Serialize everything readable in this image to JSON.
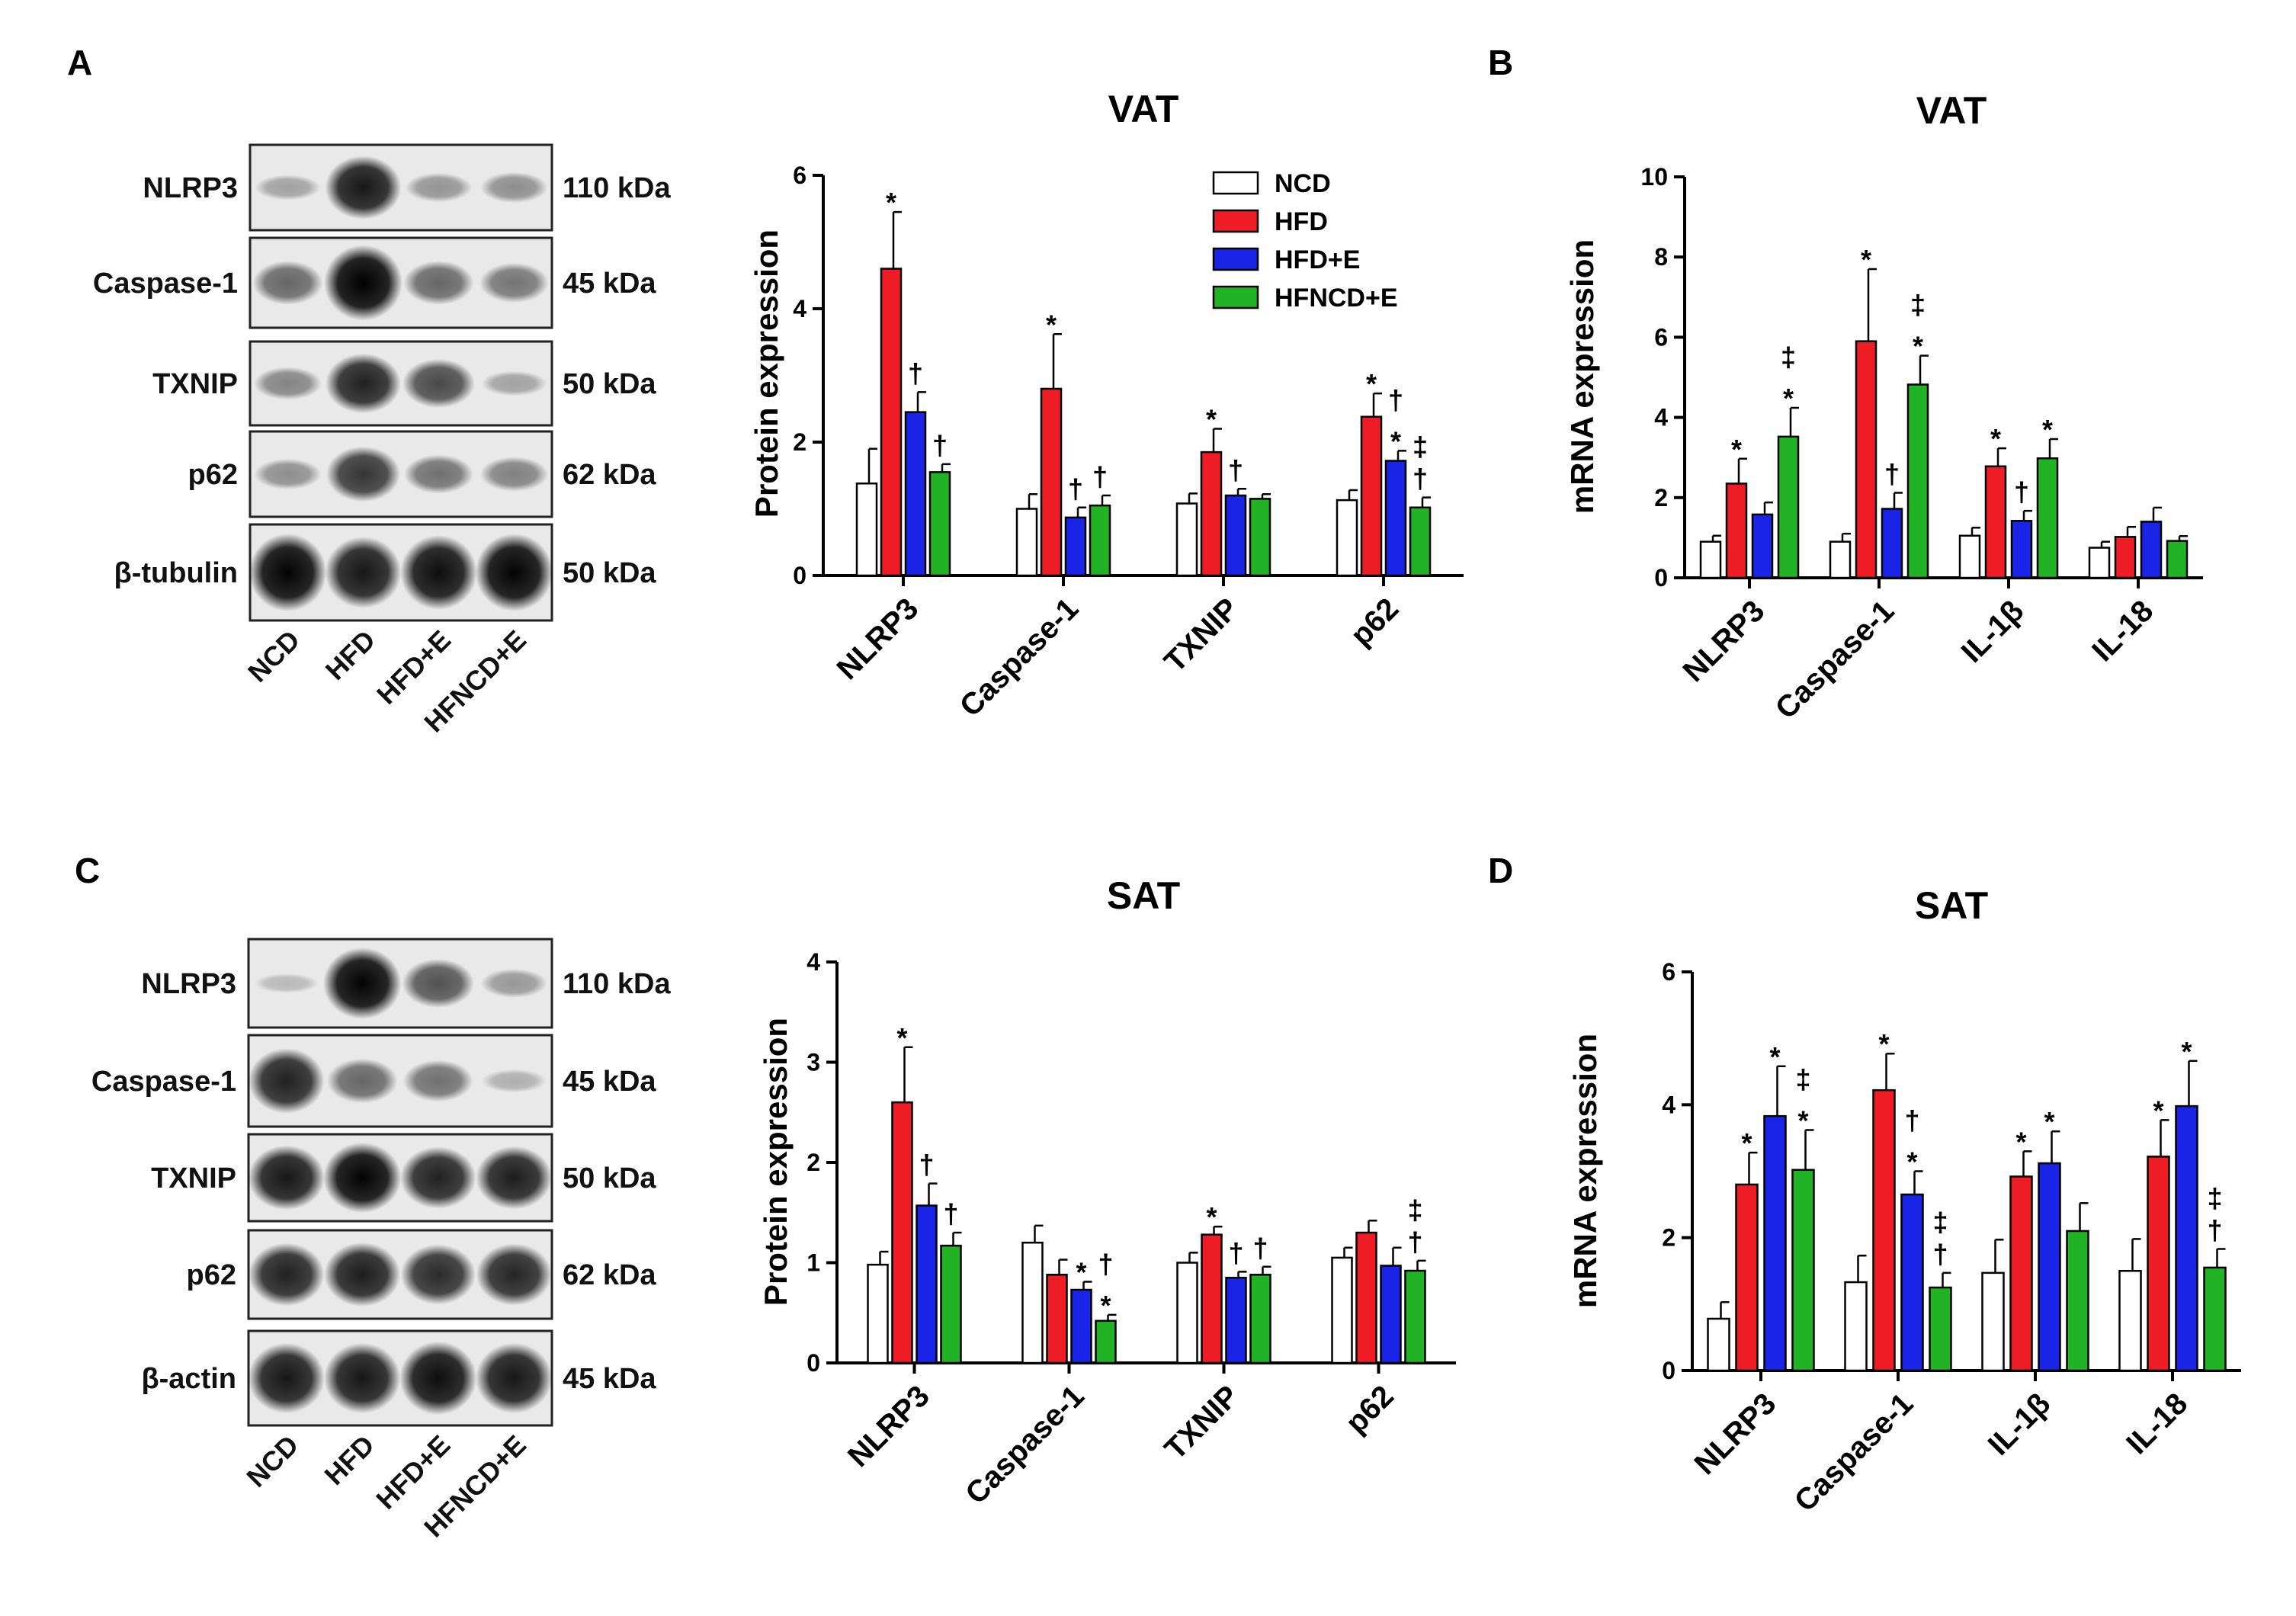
{
  "panel_labels": {
    "A": "A",
    "B": "B",
    "C": "C",
    "D": "D"
  },
  "colors": {
    "NCD": "#ffffff",
    "HFD": "#ee1c25",
    "HFD+E": "#1a24e6",
    "HFNCD+E": "#22b226"
  },
  "blots": {
    "A": {
      "bands": [
        {
          "name": "NLRP3",
          "kda": "110 kDa",
          "intensity": [
            0.15,
            0.85,
            0.22,
            0.25
          ]
        },
        {
          "name": "Caspase-1",
          "kda": "45 kDa",
          "intensity": [
            0.45,
            1.0,
            0.45,
            0.38
          ]
        },
        {
          "name": "TXNIP",
          "kda": "50 kDa",
          "intensity": [
            0.3,
            0.8,
            0.6,
            0.15
          ]
        },
        {
          "name": "p62",
          "kda": "62 kDa",
          "intensity": [
            0.25,
            0.7,
            0.4,
            0.32
          ]
        },
        {
          "name": "β-tubulin",
          "kda": "50 kDa",
          "intensity": [
            0.95,
            0.85,
            0.9,
            0.95
          ]
        }
      ],
      "lanes": [
        "NCD",
        "HFD",
        "HFD+E",
        "HFNCD+E"
      ]
    },
    "C": {
      "bands": [
        {
          "name": "NLRP3",
          "kda": "110 kDa",
          "intensity": [
            0.03,
            0.95,
            0.55,
            0.2
          ]
        },
        {
          "name": "Caspase-1",
          "kda": "45 kDa",
          "intensity": [
            0.8,
            0.45,
            0.4,
            0.08
          ]
        },
        {
          "name": "TXNIP",
          "kda": "50 kDa",
          "intensity": [
            0.85,
            0.95,
            0.8,
            0.82
          ]
        },
        {
          "name": "p62",
          "kda": "62 kDa",
          "intensity": [
            0.8,
            0.82,
            0.75,
            0.78
          ]
        },
        {
          "name": "β-actin",
          "kda": "45 kDa",
          "intensity": [
            0.85,
            0.85,
            0.9,
            0.85
          ]
        }
      ],
      "lanes": [
        "NCD",
        "HFD",
        "HFD+E",
        "HFNCD+E"
      ]
    }
  },
  "legend": [
    "NCD",
    "HFD",
    "HFD+E",
    "HFNCD+E"
  ],
  "chart_data": [
    {
      "id": "A-protein",
      "type": "bar",
      "title": "VAT",
      "ylabel": "Protein expression",
      "ylim": [
        0,
        6
      ],
      "yticks": [
        "0",
        "2",
        "4",
        "6"
      ],
      "categories": [
        "NLRP3",
        "Caspase-1",
        "TXNIP",
        "p62"
      ],
      "series": [
        {
          "name": "NCD",
          "values": [
            1.38,
            1.0,
            1.08,
            1.13
          ],
          "errors": [
            0.52,
            0.22,
            0.15,
            0.15
          ]
        },
        {
          "name": "HFD",
          "values": [
            4.6,
            2.8,
            1.85,
            2.38
          ],
          "errors": [
            0.85,
            0.82,
            0.35,
            0.35
          ]
        },
        {
          "name": "HFD+E",
          "values": [
            2.45,
            0.87,
            1.2,
            1.72
          ],
          "errors": [
            0.3,
            0.15,
            0.1,
            0.15
          ]
        },
        {
          "name": "HFNCD+E",
          "values": [
            1.55,
            1.05,
            1.15,
            1.02
          ],
          "errors": [
            0.12,
            0.15,
            0.07,
            0.15
          ]
        }
      ],
      "annotations": [
        {
          "cat": 0,
          "series": 1,
          "text": [
            "*"
          ]
        },
        {
          "cat": 0,
          "series": 2,
          "text": [
            "†"
          ]
        },
        {
          "cat": 0,
          "series": 3,
          "text": [
            "†"
          ]
        },
        {
          "cat": 1,
          "series": 1,
          "text": [
            "*"
          ]
        },
        {
          "cat": 1,
          "series": 2,
          "text": [
            "†"
          ]
        },
        {
          "cat": 1,
          "series": 3,
          "text": [
            "†"
          ]
        },
        {
          "cat": 2,
          "series": 1,
          "text": [
            "*"
          ]
        },
        {
          "cat": 2,
          "series": 2,
          "text": [
            "†"
          ]
        },
        {
          "cat": 3,
          "series": 1,
          "text": [
            "*"
          ]
        },
        {
          "cat": 3,
          "series": 2,
          "text": [
            "†",
            "*"
          ]
        },
        {
          "cat": 3,
          "series": 3,
          "text": [
            "‡",
            "†"
          ]
        }
      ]
    },
    {
      "id": "B-mrna",
      "type": "bar",
      "title": "VAT",
      "ylabel": "mRNA expression",
      "ylim": [
        0,
        10
      ],
      "yticks": [
        "0",
        "2",
        "4",
        "6",
        "8",
        "10"
      ],
      "categories": [
        "NLRP3",
        "Caspase-1",
        "IL-1β",
        "IL-18"
      ],
      "series": [
        {
          "name": "NCD",
          "values": [
            0.9,
            0.9,
            1.05,
            0.75
          ],
          "errors": [
            0.15,
            0.2,
            0.2,
            0.15
          ]
        },
        {
          "name": "HFD",
          "values": [
            2.35,
            5.9,
            2.78,
            1.02
          ],
          "errors": [
            0.62,
            1.8,
            0.45,
            0.25
          ]
        },
        {
          "name": "HFD+E",
          "values": [
            1.58,
            1.72,
            1.42,
            1.4
          ],
          "errors": [
            0.3,
            0.4,
            0.25,
            0.35
          ]
        },
        {
          "name": "HFNCD+E",
          "values": [
            3.52,
            4.82,
            2.98,
            0.92
          ],
          "errors": [
            0.72,
            0.72,
            0.48,
            0.12
          ]
        }
      ],
      "annotations": [
        {
          "cat": 0,
          "series": 1,
          "text": [
            "*"
          ]
        },
        {
          "cat": 0,
          "series": 3,
          "text": [
            "‡",
            "*"
          ]
        },
        {
          "cat": 1,
          "series": 1,
          "text": [
            "*"
          ]
        },
        {
          "cat": 1,
          "series": 2,
          "text": [
            "†"
          ]
        },
        {
          "cat": 1,
          "series": 3,
          "text": [
            "‡",
            "*"
          ]
        },
        {
          "cat": 2,
          "series": 1,
          "text": [
            "*"
          ]
        },
        {
          "cat": 2,
          "series": 2,
          "text": [
            "†"
          ]
        },
        {
          "cat": 2,
          "series": 3,
          "text": [
            "*"
          ]
        }
      ]
    },
    {
      "id": "C-protein",
      "type": "bar",
      "title": "SAT",
      "ylabel": "Protein expression",
      "ylim": [
        0,
        4
      ],
      "yticks": [
        "0",
        "1",
        "2",
        "3",
        "4"
      ],
      "categories": [
        "NLRP3",
        "Caspase-1",
        "TXNIP",
        "p62"
      ],
      "series": [
        {
          "name": "NCD",
          "values": [
            0.98,
            1.2,
            1.0,
            1.05
          ],
          "errors": [
            0.13,
            0.17,
            0.1,
            0.1
          ]
        },
        {
          "name": "HFD",
          "values": [
            2.6,
            0.88,
            1.28,
            1.3
          ],
          "errors": [
            0.55,
            0.15,
            0.08,
            0.12
          ]
        },
        {
          "name": "HFD+E",
          "values": [
            1.57,
            0.73,
            0.85,
            0.97
          ],
          "errors": [
            0.22,
            0.08,
            0.06,
            0.18
          ]
        },
        {
          "name": "HFNCD+E",
          "values": [
            1.17,
            0.42,
            0.88,
            0.92
          ],
          "errors": [
            0.13,
            0.06,
            0.08,
            0.1
          ]
        }
      ],
      "annotations": [
        {
          "cat": 0,
          "series": 1,
          "text": [
            "*"
          ]
        },
        {
          "cat": 0,
          "series": 2,
          "text": [
            "†"
          ]
        },
        {
          "cat": 0,
          "series": 3,
          "text": [
            "†"
          ]
        },
        {
          "cat": 1,
          "series": 2,
          "text": [
            "*"
          ]
        },
        {
          "cat": 1,
          "series": 3,
          "text": [
            "†",
            "*"
          ]
        },
        {
          "cat": 2,
          "series": 1,
          "text": [
            "*"
          ]
        },
        {
          "cat": 2,
          "series": 2,
          "text": [
            "†"
          ]
        },
        {
          "cat": 2,
          "series": 3,
          "text": [
            "†"
          ]
        },
        {
          "cat": 3,
          "series": 3,
          "text": [
            "‡",
            "†"
          ]
        }
      ]
    },
    {
      "id": "D-mrna",
      "type": "bar",
      "title": "SAT",
      "ylabel": "mRNA expression",
      "ylim": [
        0,
        6
      ],
      "yticks": [
        "0",
        "2",
        "4",
        "6"
      ],
      "categories": [
        "NLRP3",
        "Caspase-1",
        "IL-1β",
        "IL-18"
      ],
      "series": [
        {
          "name": "NCD",
          "values": [
            0.78,
            1.33,
            1.47,
            1.5
          ],
          "errors": [
            0.25,
            0.4,
            0.5,
            0.48
          ]
        },
        {
          "name": "HFD",
          "values": [
            2.8,
            4.22,
            2.92,
            3.22
          ],
          "errors": [
            0.48,
            0.55,
            0.38,
            0.55
          ]
        },
        {
          "name": "HFD+E",
          "values": [
            3.83,
            2.65,
            3.12,
            3.98
          ],
          "errors": [
            0.75,
            0.35,
            0.48,
            0.68
          ]
        },
        {
          "name": "HFNCD+E",
          "values": [
            3.02,
            1.25,
            2.1,
            1.55
          ],
          "errors": [
            0.6,
            0.22,
            0.42,
            0.28
          ]
        }
      ],
      "annotations": [
        {
          "cat": 0,
          "series": 1,
          "text": [
            "*"
          ]
        },
        {
          "cat": 0,
          "series": 2,
          "text": [
            "*"
          ]
        },
        {
          "cat": 0,
          "series": 3,
          "text": [
            "‡",
            "*"
          ]
        },
        {
          "cat": 1,
          "series": 1,
          "text": [
            "*"
          ]
        },
        {
          "cat": 1,
          "series": 2,
          "text": [
            "†",
            "*"
          ]
        },
        {
          "cat": 1,
          "series": 3,
          "text": [
            "‡",
            "†"
          ]
        },
        {
          "cat": 2,
          "series": 1,
          "text": [
            "*"
          ]
        },
        {
          "cat": 2,
          "series": 2,
          "text": [
            "*"
          ]
        },
        {
          "cat": 3,
          "series": 1,
          "text": [
            "*"
          ]
        },
        {
          "cat": 3,
          "series": 2,
          "text": [
            "*"
          ]
        },
        {
          "cat": 3,
          "series": 3,
          "text": [
            "‡",
            "†"
          ]
        }
      ]
    }
  ]
}
